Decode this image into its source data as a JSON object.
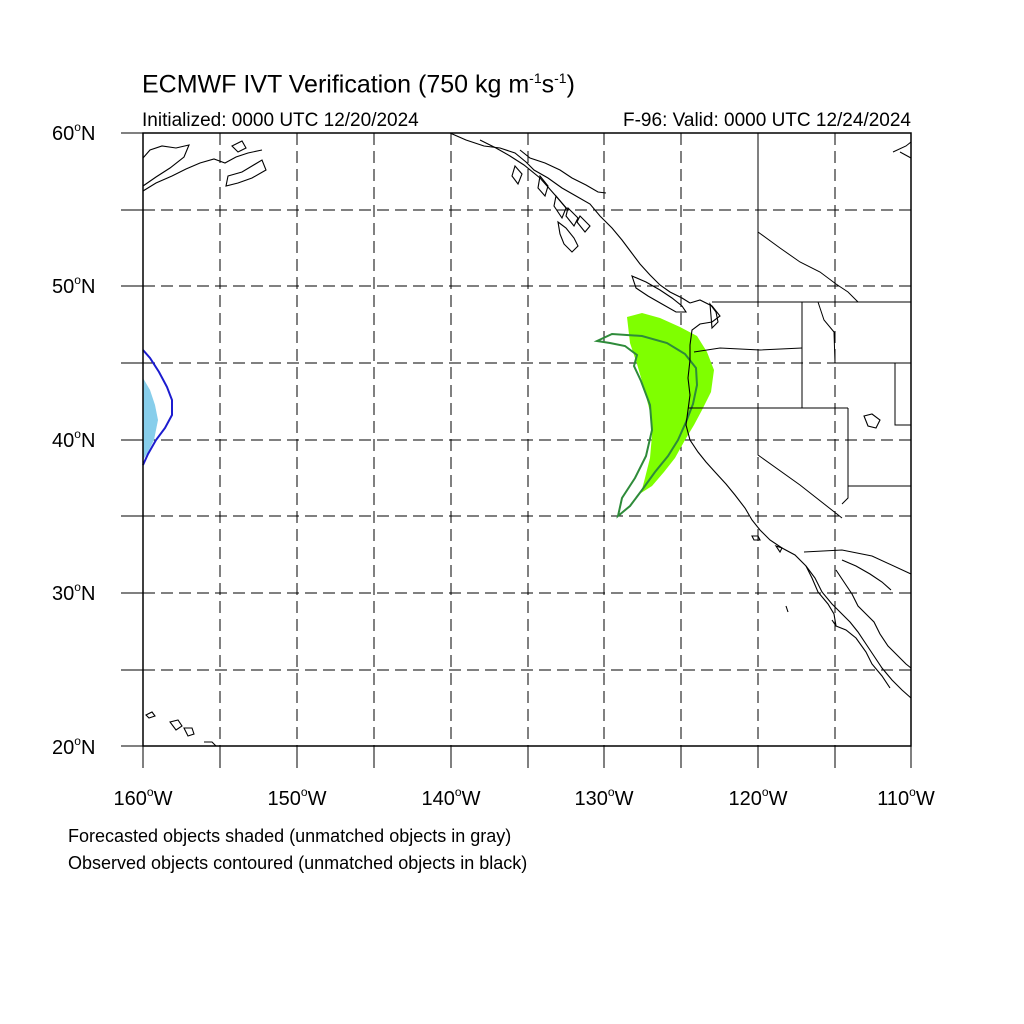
{
  "title": {
    "main": "ECMWF IVT Verification (750 kg m",
    "exp1": "-1",
    "mid": "s",
    "exp2": "-1",
    "end": ")"
  },
  "subtitle_left": "Initialized: 0000 UTC 12/20/2024",
  "subtitle_right": "F-96: Valid: 0000 UTC 12/24/2024",
  "lat_labels": [
    "60",
    "50",
    "40",
    "30",
    "20"
  ],
  "lon_labels": [
    "160",
    "150",
    "140",
    "130",
    "120",
    "110"
  ],
  "lat_suffix": "N",
  "lon_suffix": "W",
  "degree_symbol": "o",
  "legend": {
    "line1": "Forecasted objects shaded (unmatched objects in gray)",
    "line2": "Observed objects contoured (unmatched objects in black)"
  },
  "map": {
    "lon_range": [
      -160,
      -110
    ],
    "lat_range": [
      20,
      60
    ],
    "grid_spacing_deg": 5,
    "colors": {
      "coast": "#000000",
      "grid": "#000000",
      "forecast_green": "#7fff00",
      "observed_green": "#2e8b3a",
      "forecast_blue": "#87ceeb",
      "observed_blue": "#1c1ccf"
    }
  }
}
